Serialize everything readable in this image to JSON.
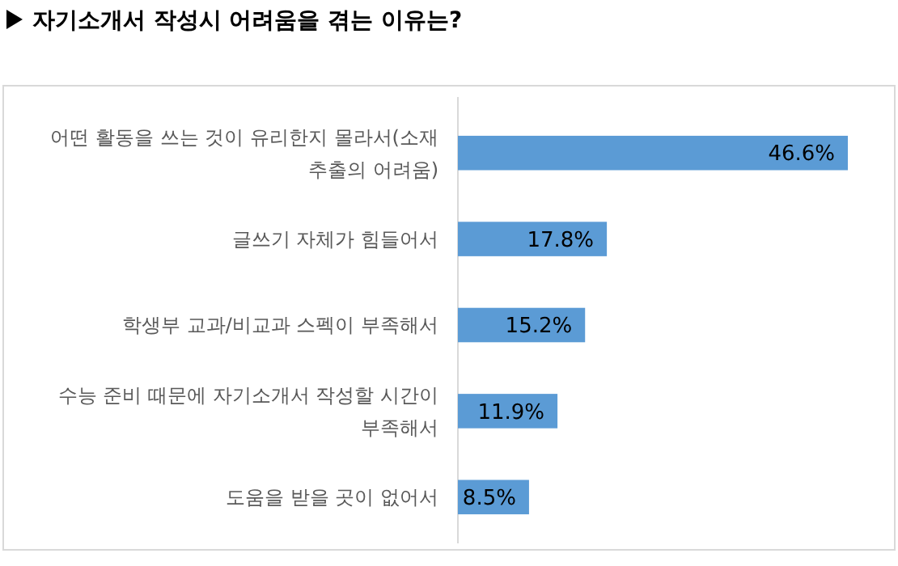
{
  "chart_data": {
    "type": "bar",
    "orientation": "horizontal",
    "title": "자기소개서 작성시 어려움을 겪는 이유는?",
    "categories": [
      "어떤 활동을 쓰는 것이 유리한지 몰라서(소재 추출의 어려움)",
      "글쓰기 자체가 힘들어서",
      "학생부 교과/비교과 스펙이 부족해서",
      "수능 준비 때문에 자기소개서 작성할 시간이 부족해서",
      "도움을 받을 곳이 없어서"
    ],
    "values": [
      46.6,
      17.8,
      15.2,
      11.9,
      8.5
    ],
    "value_labels": [
      "46.6%",
      "17.8%",
      "15.2%",
      "11.9%",
      "8.5%"
    ],
    "color": "#5b9bd5"
  }
}
